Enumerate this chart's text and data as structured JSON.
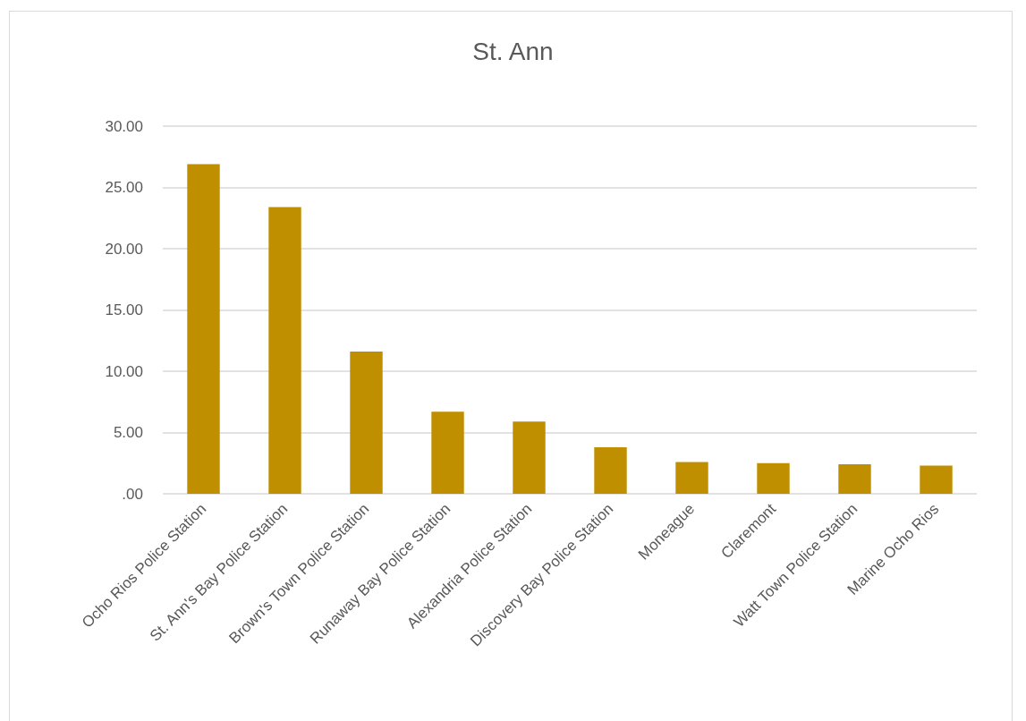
{
  "chart_data": {
    "type": "bar",
    "title": "St. Ann",
    "categories": [
      "Ocho Rios Police Station",
      "St. Ann's Bay Police Station",
      "Brown's Town Police Station",
      "Runaway Bay Police Station",
      "Alexandria Police Station",
      "Discovery Bay Police Station",
      "Moneague",
      "Claremont",
      "Watt Town Police Station",
      "Marine Ocho Rios"
    ],
    "values": [
      26.9,
      23.4,
      11.6,
      6.7,
      5.9,
      3.8,
      2.6,
      2.5,
      2.4,
      2.3
    ],
    "color": "#bf8f00",
    "ylim": [
      0,
      30
    ],
    "yticks": [
      {
        "value": 0,
        "label": ".00"
      },
      {
        "value": 5,
        "label": "5.00"
      },
      {
        "value": 10,
        "label": "10.00"
      },
      {
        "value": 15,
        "label": "15.00"
      },
      {
        "value": 20,
        "label": "20.00"
      },
      {
        "value": 25,
        "label": "25.00"
      },
      {
        "value": 30,
        "label": "30.00"
      }
    ],
    "grid": "y"
  }
}
